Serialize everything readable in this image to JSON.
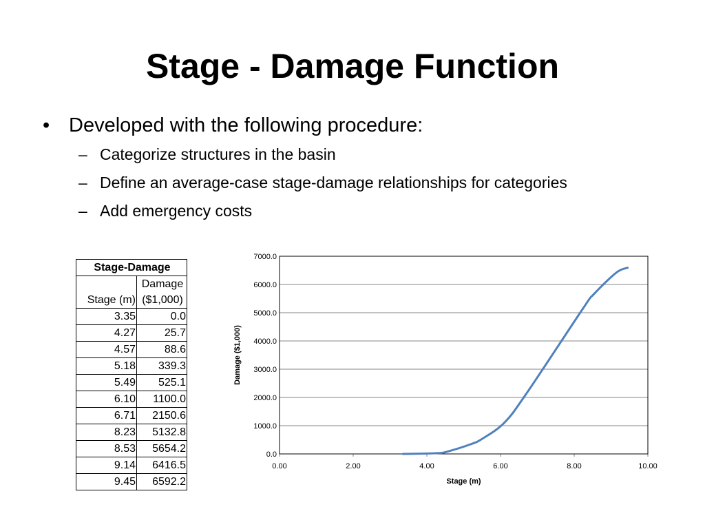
{
  "slide": {
    "title": "Stage - Damage Function",
    "bullet": "Developed with the following procedure:",
    "sub_bullets": [
      "Categorize structures in the basin",
      "Define an average-case stage-damage relationships for categories",
      "Add emergency costs"
    ],
    "bullet_glyph": "•",
    "dash_glyph": "–"
  },
  "table": {
    "title": "Stage-Damage",
    "col1_header": "Stage (m)",
    "col2_header_line1": "Damage",
    "col2_header_line2": "($1,000)",
    "rows": [
      [
        "3.35",
        "0.0"
      ],
      [
        "4.27",
        "25.7"
      ],
      [
        "4.57",
        "88.6"
      ],
      [
        "5.18",
        "339.3"
      ],
      [
        "5.49",
        "525.1"
      ],
      [
        "6.10",
        "1100.0"
      ],
      [
        "6.71",
        "2150.6"
      ],
      [
        "8.23",
        "5132.8"
      ],
      [
        "8.53",
        "5654.2"
      ],
      [
        "9.14",
        "6416.5"
      ],
      [
        "9.45",
        "6592.2"
      ]
    ]
  },
  "chart_data": {
    "type": "line",
    "title": "",
    "xlabel": "Stage (m)",
    "ylabel": "Damage ($1,000)",
    "xlim": [
      0,
      10
    ],
    "ylim": [
      0,
      7000
    ],
    "xticks": [
      "0.00",
      "2.00",
      "4.00",
      "6.00",
      "8.00",
      "10.00"
    ],
    "yticks": [
      "0.0",
      "1000.0",
      "2000.0",
      "3000.0",
      "4000.0",
      "5000.0",
      "6000.0",
      "7000.0"
    ],
    "grid": "horizontal",
    "legend": "none",
    "line_color": "#4F81BD",
    "series": [
      {
        "x": [
          3.35,
          4.27,
          4.57,
          5.18,
          5.49,
          6.1,
          6.71,
          8.23,
          8.53,
          9.14,
          9.45
        ],
        "y": [
          0.0,
          25.7,
          88.6,
          339.3,
          525.1,
          1100.0,
          2150.6,
          5132.8,
          5654.2,
          6416.5,
          6592.2
        ]
      }
    ]
  }
}
